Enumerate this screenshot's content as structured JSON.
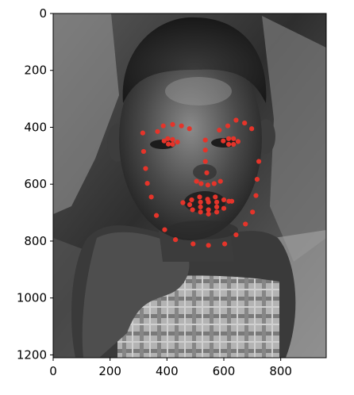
{
  "chart_data": {
    "type": "scatter",
    "title": "",
    "xlabel": "",
    "ylabel": "",
    "xlim": [
      0,
      960
    ],
    "ylim": [
      1210,
      0
    ],
    "x_ticks": [
      0,
      200,
      400,
      600,
      800
    ],
    "y_ticks": [
      0,
      200,
      400,
      600,
      800,
      1000,
      1200
    ],
    "x_tick_labels": [
      "0",
      "200",
      "400",
      "600",
      "800"
    ],
    "y_tick_labels": [
      "0",
      "200",
      "400",
      "600",
      "800",
      "1000",
      "1200"
    ],
    "grid": false,
    "background": "grayscale photograph of a child's face",
    "marker_color": "#e5342a",
    "series": [
      {
        "x": [
          315,
          318,
          325,
          331,
          345,
          363,
          392,
          430,
          492,
          546,
          603,
          643,
          676,
          701,
          713,
          717,
          723,
          367,
          387,
          420,
          451,
          479,
          584,
          614,
          643,
          673,
          698,
          535,
          535,
          535,
          540,
          504,
          520,
          544,
          566,
          588,
          390,
          403,
          420,
          437,
          420,
          405,
          598,
          617,
          634,
          650,
          634,
          617,
          456,
          487,
          515,
          543,
          570,
          600,
          628,
          600,
          575,
          546,
          518,
          490,
          480,
          518,
          546,
          575,
          618,
          575,
          546,
          518
        ],
        "y": [
          420,
          485,
          545,
          597,
          645,
          710,
          760,
          795,
          810,
          815,
          810,
          778,
          740,
          698,
          640,
          583,
          520,
          415,
          395,
          390,
          395,
          405,
          410,
          395,
          375,
          385,
          405,
          445,
          480,
          520,
          560,
          590,
          598,
          603,
          598,
          590,
          448,
          440,
          443,
          452,
          460,
          459,
          448,
          440,
          440,
          450,
          460,
          460,
          665,
          655,
          645,
          653,
          645,
          655,
          660,
          685,
          698,
          705,
          698,
          690,
          672,
          663,
          663,
          663,
          660,
          680,
          690,
          680
        ]
      }
    ]
  }
}
